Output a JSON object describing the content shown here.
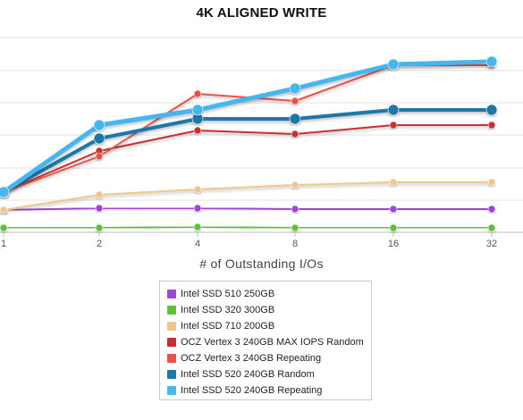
{
  "chart_data": {
    "type": "line",
    "title": "4K ALIGNED WRITE",
    "xlabel": "# of Outstanding I/Os",
    "ylabel": "",
    "x": [
      1,
      2,
      4,
      8,
      16,
      32
    ],
    "x_tick_labels": [
      "1",
      "2",
      "4",
      "8",
      "16",
      "32"
    ],
    "x_scale": "log2",
    "grid": "horizontal",
    "legend_position": "bottom-center",
    "series": [
      {
        "name": "Intel SSD 510 250GB",
        "color": "#9b45d9",
        "width": 2,
        "values": [
          235,
          233,
          233,
          234,
          234,
          234
        ]
      },
      {
        "name": "Intel SSD 320 300GB",
        "color": "#5ec234",
        "width": 2,
        "values": [
          255,
          255,
          254,
          255,
          255,
          255
        ]
      },
      {
        "name": "Intel SSD 710 200GB",
        "color": "#f0c78a",
        "width": 2,
        "values": [
          235,
          218,
          212,
          207,
          204,
          204
        ]
      },
      {
        "name": "OCZ Vertex 3 240GB MAX IOPS Random",
        "color": "#c43030",
        "width": 2,
        "values": [
          215,
          169,
          146,
          150,
          140,
          140
        ]
      },
      {
        "name": "OCZ Vertex 3 240GB Repeating",
        "color": "#e8524a",
        "width": 2,
        "values": [
          215,
          175,
          105,
          113,
          73,
          73
        ]
      },
      {
        "name": "Intel SSD 520 240GB Random",
        "color": "#1f78a8",
        "width": 4,
        "values": [
          215,
          155,
          133,
          133,
          123,
          123
        ]
      },
      {
        "name": "Intel SSD 520 240GB Repeating",
        "color": "#45b6ee",
        "width": 5,
        "values": [
          215,
          140,
          123,
          99,
          72,
          69
        ]
      }
    ]
  }
}
